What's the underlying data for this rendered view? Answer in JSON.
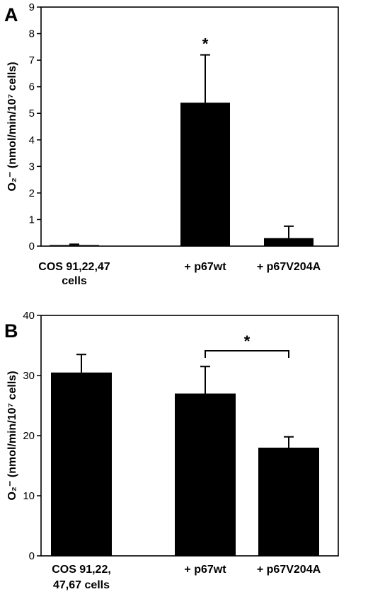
{
  "chart_data": [
    {
      "type": "bar",
      "panel_label": "A",
      "categories": [
        [
          "COS 91,22,47",
          "cells"
        ],
        [
          "+ p67wt"
        ],
        [
          "+ p67V204A"
        ]
      ],
      "values": [
        0.02,
        5.4,
        0.3
      ],
      "errors": [
        0.05,
        1.8,
        0.45
      ],
      "ylabel": "O₂⁻ (nmol/min/10⁷ cells)",
      "ylim": [
        0,
        9
      ],
      "yticks": [
        0,
        1,
        2,
        3,
        4,
        5,
        6,
        7,
        8,
        9
      ],
      "significance": [
        {
          "type": "star",
          "category_index": 1,
          "label": "*"
        }
      ],
      "bar_color": "#000000"
    },
    {
      "type": "bar",
      "panel_label": "B",
      "categories": [
        [
          "COS 91,22,",
          "47,67 cells"
        ],
        [
          "+ p67wt"
        ],
        [
          "+ p67V204A"
        ]
      ],
      "values": [
        30.5,
        27,
        18
      ],
      "errors": [
        3,
        4.5,
        1.8
      ],
      "ylabel": "O₂⁻ (nmol/min/10⁷ cells)",
      "ylim": [
        0,
        40
      ],
      "yticks": [
        0,
        10,
        20,
        30,
        40
      ],
      "significance": [
        {
          "type": "bracket",
          "from": 1,
          "to": 2,
          "label": "*"
        }
      ],
      "bar_color": "#000000"
    }
  ]
}
